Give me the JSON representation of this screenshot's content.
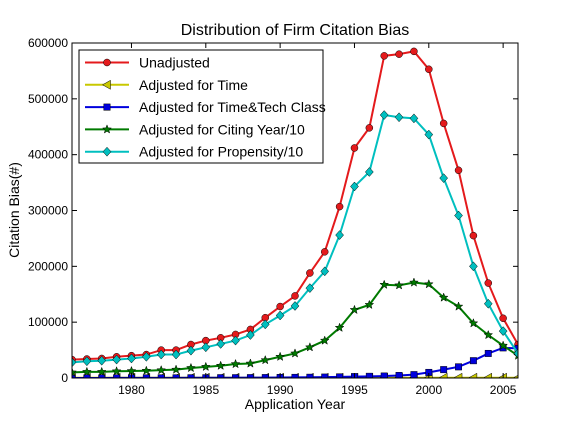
{
  "chart_data": {
    "type": "line",
    "title": "Distribution of Firm Citation Bias",
    "xlabel": "Application Year",
    "ylabel": "Citation Bias(#)",
    "xlim": [
      1976,
      2006
    ],
    "ylim": [
      0,
      600000
    ],
    "xticks": [
      1980,
      1985,
      1990,
      1995,
      2000,
      2005
    ],
    "yticks": [
      0,
      100000,
      200000,
      300000,
      400000,
      500000,
      600000
    ],
    "grid": false,
    "legend_position": "upper-left",
    "x": [
      1976,
      1977,
      1978,
      1979,
      1980,
      1981,
      1982,
      1983,
      1984,
      1985,
      1986,
      1987,
      1988,
      1989,
      1990,
      1991,
      1992,
      1993,
      1994,
      1995,
      1996,
      1997,
      1998,
      1999,
      2000,
      2001,
      2002,
      2003,
      2004,
      2005,
      2006
    ],
    "series": [
      {
        "name": "Unadjusted",
        "color": "#e41a1c",
        "marker": "circle",
        "values": [
          33000,
          34000,
          35000,
          38000,
          40000,
          42000,
          50000,
          50000,
          60000,
          67000,
          72000,
          78000,
          87000,
          108000,
          128000,
          147000,
          188000,
          226000,
          307000,
          412000,
          448000,
          577000,
          580000,
          585000,
          553000,
          456000,
          372000,
          255000,
          170000,
          107000,
          60000
        ]
      },
      {
        "name": "Adjusted for Time",
        "color": "#c8c800",
        "marker": "triangle-left",
        "values": [
          500,
          500,
          500,
          500,
          500,
          500,
          500,
          500,
          500,
          500,
          500,
          500,
          500,
          500,
          500,
          500,
          500,
          500,
          500,
          500,
          500,
          500,
          500,
          500,
          500,
          500,
          500,
          500,
          500,
          500,
          500
        ]
      },
      {
        "name": "Adjusted for Time&Tech Class",
        "color": "#0000dd",
        "marker": "square",
        "values": [
          100,
          100,
          100,
          200,
          200,
          200,
          300,
          300,
          400,
          400,
          500,
          500,
          600,
          700,
          900,
          1100,
          1300,
          1600,
          2000,
          2500,
          3000,
          3500,
          4500,
          6000,
          10000,
          15000,
          20000,
          31000,
          44000,
          54000,
          53000
        ]
      },
      {
        "name": "Adjusted for Citing Year/10",
        "color": "#007a00",
        "marker": "star",
        "values": [
          10000,
          11000,
          11000,
          12000,
          12500,
          13000,
          14000,
          15000,
          18000,
          20000,
          22000,
          25000,
          26000,
          32000,
          38000,
          44000,
          55000,
          67000,
          90000,
          122000,
          131000,
          167000,
          166000,
          171000,
          168000,
          144000,
          128000,
          98000,
          77000,
          58000,
          40000
        ]
      },
      {
        "name": "Adjusted for Propensity/10",
        "color": "#00bfbf",
        "marker": "diamond",
        "values": [
          28000,
          30000,
          31000,
          33000,
          35000,
          38000,
          42000,
          42000,
          49000,
          55000,
          61000,
          67000,
          77000,
          96000,
          112000,
          129000,
          161000,
          191000,
          256000,
          343000,
          369000,
          471000,
          467000,
          465000,
          436000,
          358000,
          291000,
          200000,
          133000,
          84000,
          44000
        ]
      }
    ]
  }
}
